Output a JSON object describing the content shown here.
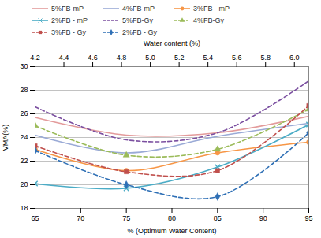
{
  "chart_data": {
    "type": "line",
    "x": [
      65,
      75,
      85,
      95
    ],
    "xlabel": "% (Optimum Water Content)",
    "xlim": [
      65,
      95
    ],
    "xticks": [
      65,
      70,
      75,
      80,
      85,
      90,
      95
    ],
    "x2label": "Water content (%)",
    "x2lim": [
      4.2,
      6.1
    ],
    "x2ticks": [
      4.2,
      4.4,
      4.6,
      4.8,
      {
        "value": 5,
        "label": "5.0"
      },
      5.2,
      5.4,
      5.6,
      5.8,
      {
        "value": 6,
        "label": "6.0"
      }
    ],
    "ylabel": "VMA(%)",
    "ylim": [
      18,
      30
    ],
    "yticks": [
      18,
      20,
      22,
      24,
      26,
      28,
      30
    ],
    "grid": true,
    "legend": "top",
    "series": [
      {
        "name": "5%FB-mP",
        "color": "#e39b9b",
        "line_style": "solid",
        "marker": "none",
        "values": [
          25.7,
          24.2,
          24.4,
          25.8
        ]
      },
      {
        "name": "4%FB-mP",
        "color": "#9aaad6",
        "line_style": "solid",
        "marker": "none",
        "values": [
          24.2,
          22.7,
          24.1,
          25.2
        ]
      },
      {
        "name": "3%FB - mP",
        "color": "#f79646",
        "line_style": "solid",
        "marker": "circle",
        "values": [
          23.0,
          21.2,
          22.7,
          23.6
        ]
      },
      {
        "name": "2%FB - mP",
        "color": "#4bacc6",
        "line_style": "solid",
        "marker": "x",
        "values": [
          20.1,
          19.7,
          21.5,
          25.1
        ]
      },
      {
        "name": "5%FB-Gy",
        "color": "#7b4fa0",
        "line_style": "dashed",
        "marker": "none",
        "values": [
          26.6,
          23.8,
          24.4,
          28.8
        ]
      },
      {
        "name": "4%FB-Gy",
        "color": "#9bbb59",
        "line_style": "dashed",
        "marker": "triangle",
        "values": [
          25.0,
          22.5,
          23.0,
          26.4
        ]
      },
      {
        "name": "3%FB - Gy",
        "color": "#c0504d",
        "line_style": "dashed",
        "marker": "square",
        "values": [
          23.3,
          21.1,
          21.2,
          26.7
        ]
      },
      {
        "name": "2%FB - Gy",
        "color": "#2e6fb5",
        "line_style": "dashed",
        "marker": "diamond",
        "values": [
          22.9,
          20.0,
          19.0,
          24.4
        ]
      }
    ]
  }
}
